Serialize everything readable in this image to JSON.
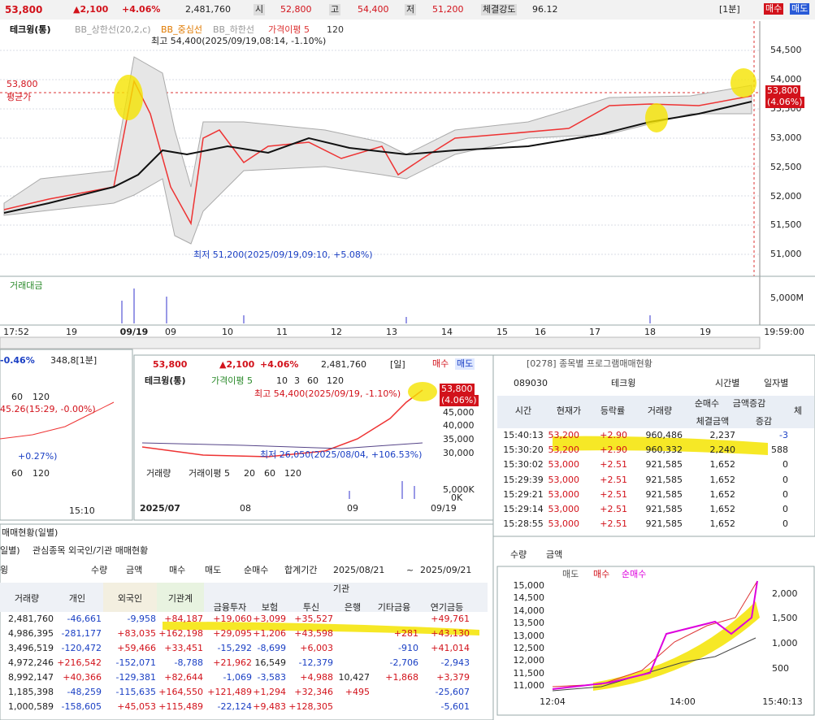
{
  "top_bar": {
    "price": "53,800",
    "change": "▲2,100",
    "rate": "+4.06%",
    "volume": "2,481,760",
    "open_label": "시",
    "open": "52,800",
    "high_label": "고",
    "high": "54,400",
    "low_label": "저",
    "low": "51,200",
    "strength_label": "체결강도",
    "strength": "96.12",
    "interval": "[1분]",
    "buy": "매수",
    "sell": "매도"
  },
  "main_chart": {
    "legend": [
      "테크윙(통)",
      "BB_상한선(20,2,c)",
      "BB_중심선",
      "BB_하한선",
      "가격이평 5",
      "120"
    ],
    "y_labels": [
      "54,500",
      "54,000",
      "53,500",
      "53,000",
      "52,500",
      "52,000",
      "51,500",
      "51,000"
    ],
    "high_note": "최고 54,400(2025/09/19,08:14, -1.10%)",
    "low_note": "최저 51,200(2025/09/19,09:10, +5.08%)",
    "avg_price": "53,800",
    "avg_label": "평균가",
    "price_tag": "53,800",
    "rate_tag": "(4.06%)",
    "volume_title": "거래대금",
    "volume_label": "5,000M",
    "x_labels": [
      "17:52",
      "19",
      "09/19",
      "09",
      "10",
      "11",
      "12",
      "13",
      "14",
      "15",
      "16",
      "17",
      "18",
      "19",
      "19:59:00"
    ]
  },
  "mini_chart": {
    "rate": "-0.46%",
    "info": "348,8[1분]",
    "note": "45.26(15:29, -0.00%)",
    "note2": "+0.27%)",
    "legend1": [
      "60",
      "120"
    ],
    "legend2": [
      "60",
      "120"
    ],
    "x_label": "15:10"
  },
  "daily_chart": {
    "price": "53,800",
    "change": "▲2,100",
    "rate": "+4.06%",
    "volume": "2,481,760",
    "interval": "[일]",
    "buy": "매수",
    "sell": "매도",
    "legend": [
      "테크윙(통)",
      "가격이평 5",
      "10",
      "3",
      "60",
      "120"
    ],
    "high_note": "최고 54,400(2025/09/19, -1.10%)",
    "low_note": "최저 26,050(2025/08/04, +106.53%)",
    "y_labels": [
      "45,000",
      "40,000",
      "35,000",
      "30,000"
    ],
    "price_tag": "53,800",
    "rate_tag": "(4.06%)",
    "volume_legend": [
      "거래량",
      "거래이평 5",
      "20",
      "60",
      "120"
    ],
    "volume_labels": [
      "5,000K",
      "0K"
    ],
    "x_labels": [
      "2025/07",
      "08",
      "09",
      "09/19"
    ]
  },
  "program_panel": {
    "title": "[0278] 종목별 프로그램매매현황",
    "code": "089030",
    "name": "테크윙",
    "radios": [
      "시간별",
      "일자별"
    ],
    "headers": [
      "시간",
      "현재가",
      "등락률",
      "거래량",
      "순매수",
      "체결금액",
      "금액증감",
      "증감",
      "체"
    ],
    "rows": [
      [
        "15:40:13",
        "53,200",
        "+2.90",
        "960,486",
        "2,237",
        "-3"
      ],
      [
        "15:30:20",
        "53,200",
        "+2.90",
        "960,332",
        "2,240",
        "588"
      ],
      [
        "15:30:02",
        "53,000",
        "+2.51",
        "921,585",
        "1,652",
        "0"
      ],
      [
        "15:29:39",
        "53,000",
        "+2.51",
        "921,585",
        "1,652",
        "0"
      ],
      [
        "15:29:21",
        "53,000",
        "+2.51",
        "921,585",
        "1,652",
        "0"
      ],
      [
        "15:29:14",
        "53,000",
        "+2.51",
        "921,585",
        "1,652",
        "0"
      ],
      [
        "15:28:55",
        "53,000",
        "+2.51",
        "921,585",
        "1,652",
        "0"
      ]
    ]
  },
  "program_chart": {
    "radios": [
      "수량",
      "금액"
    ],
    "legend": [
      "매도",
      "매수",
      "순매수"
    ],
    "left_labels": [
      "15,000",
      "14,500",
      "14,000",
      "13,500",
      "13,000",
      "12,500",
      "12,000",
      "11,500",
      "11,000"
    ],
    "right_labels": [
      "2,000",
      "1,500",
      "1,000",
      "500"
    ],
    "x_labels": [
      "12:04",
      "14:00",
      "15:40:13"
    ]
  },
  "daily_trades": {
    "title": "매매현황(일별)",
    "tabs": [
      "일별)",
      "관심종목 외국인/기관 매매현황"
    ],
    "stock": "윙",
    "radios": [
      "수량",
      "금액",
      "매수",
      "매도",
      "순매수"
    ],
    "period_label": "합계기간",
    "date_from": "2025/08/21",
    "tilde": "~",
    "date_to": "2025/09/21",
    "group_header": "기관",
    "headers": [
      "거래량",
      "개인",
      "외국인",
      "기관계",
      "금융투자",
      "보험",
      "투신",
      "은행",
      "기타금융",
      "연기금등"
    ],
    "rows": [
      [
        "2,481,760",
        "-46,661",
        "-9,958",
        "+84,187",
        "+19,060",
        "+3,099",
        "+35,527",
        null,
        null,
        "+49,761"
      ],
      [
        "4,986,395",
        "-281,177",
        "+83,035",
        "+162,198",
        "+29,095",
        "+1,206",
        "+43,598",
        null,
        "+281",
        "+43,130"
      ],
      [
        "3,496,519",
        "-120,472",
        "+59,466",
        "+33,451",
        "-15,292",
        "-8,699",
        "+6,003",
        null,
        "-910",
        "+41,014"
      ],
      [
        "4,972,246",
        "+216,542",
        "-152,071",
        "-8,788",
        "+21,962",
        "16,549",
        "-12,379",
        null,
        "-2,706",
        "-2,943"
      ],
      [
        "8,992,147",
        "+40,366",
        "-129,381",
        "+82,644",
        "-1,069",
        "-3,583",
        "+4,988",
        "10,427",
        "+1,868",
        "+3,379"
      ],
      [
        "1,185,398",
        "-48,259",
        "-115,635",
        "+164,550",
        "+121,489",
        "+1,294",
        "+32,346",
        "+495",
        null,
        "-25,607"
      ],
      [
        "1,000,589",
        "-158,605",
        "+45,053",
        "+115,489",
        "-22,124",
        "+9,483",
        "+128,305",
        null,
        null,
        "-5,601"
      ]
    ]
  }
}
